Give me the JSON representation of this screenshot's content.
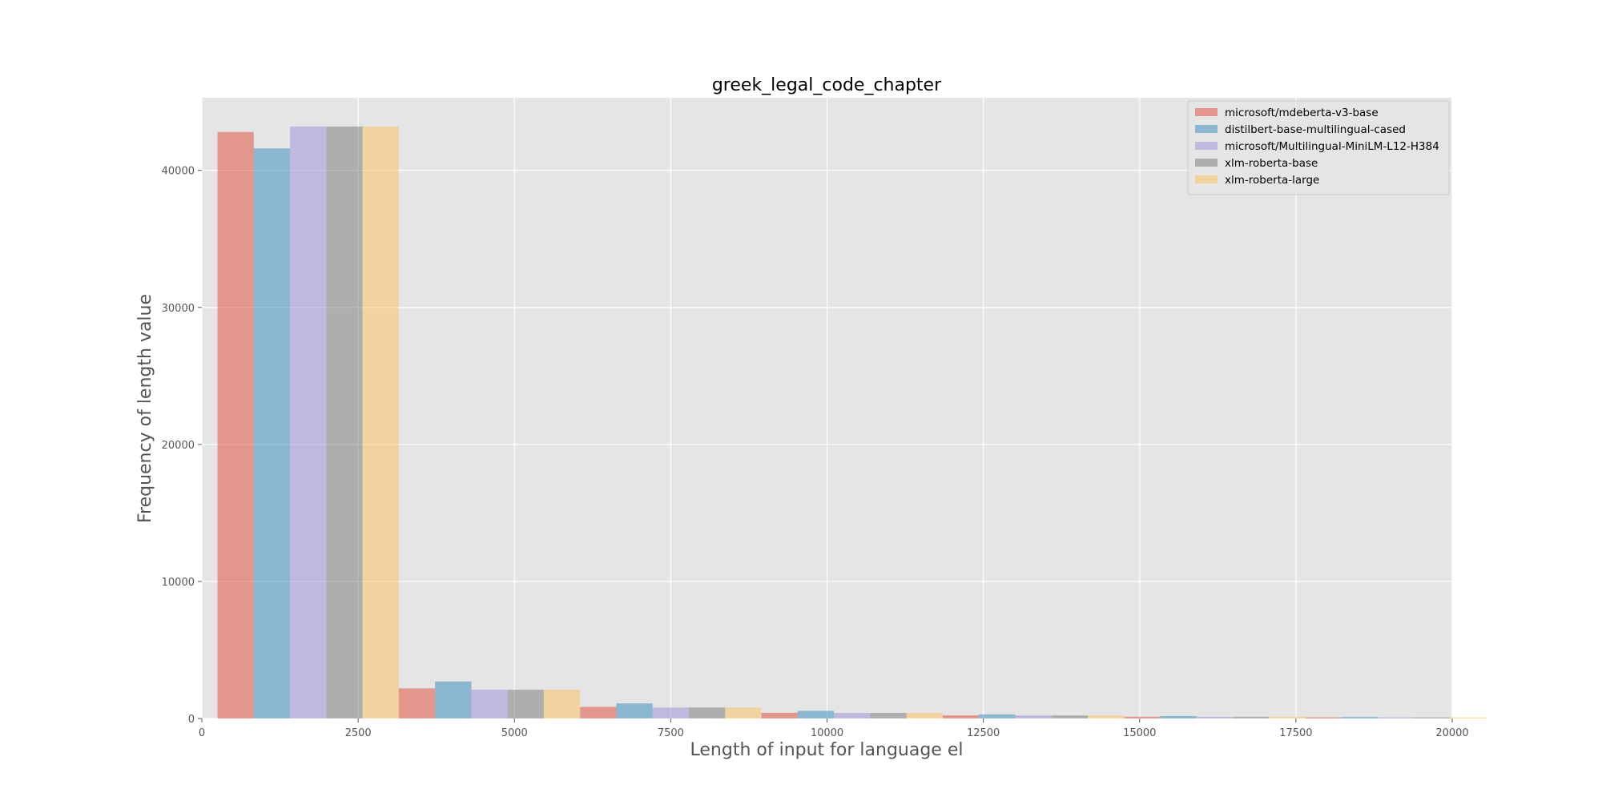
{
  "chart_data": {
    "type": "bar",
    "title": "greek_legal_code_chapter",
    "xlabel": "Length of input for language el",
    "ylabel": "Frequency of length value",
    "xlim": [
      0,
      20000
    ],
    "ylim": [
      0,
      45300
    ],
    "xticks": [
      0,
      2500,
      5000,
      7500,
      10000,
      12500,
      15000,
      17500,
      20000
    ],
    "yticks": [
      0,
      10000,
      20000,
      30000,
      40000
    ],
    "grid": true,
    "legend_position": "top-right",
    "bin_edges": [
      250,
      3150,
      6050,
      8950,
      11850,
      14750,
      17650,
      20550
    ],
    "series": [
      {
        "name": "microsoft/mdeberta-v3-base",
        "color": "#E24A33",
        "values": [
          42800,
          2200,
          850,
          420,
          230,
          130,
          90
        ]
      },
      {
        "name": "distilbert-base-multilingual-cased",
        "color": "#348ABD",
        "values": [
          41600,
          2700,
          1100,
          560,
          300,
          180,
          110
        ]
      },
      {
        "name": "microsoft/Multilingual-MiniLM-L12-H384",
        "color": "#988ED5",
        "values": [
          43200,
          2100,
          800,
          410,
          220,
          125,
          85
        ]
      },
      {
        "name": "xlm-roberta-base",
        "color": "#777777",
        "values": [
          43200,
          2100,
          800,
          410,
          220,
          125,
          85
        ]
      },
      {
        "name": "xlm-roberta-large",
        "color": "#FBC15E",
        "values": [
          43200,
          2100,
          800,
          410,
          220,
          125,
          85
        ]
      }
    ]
  }
}
